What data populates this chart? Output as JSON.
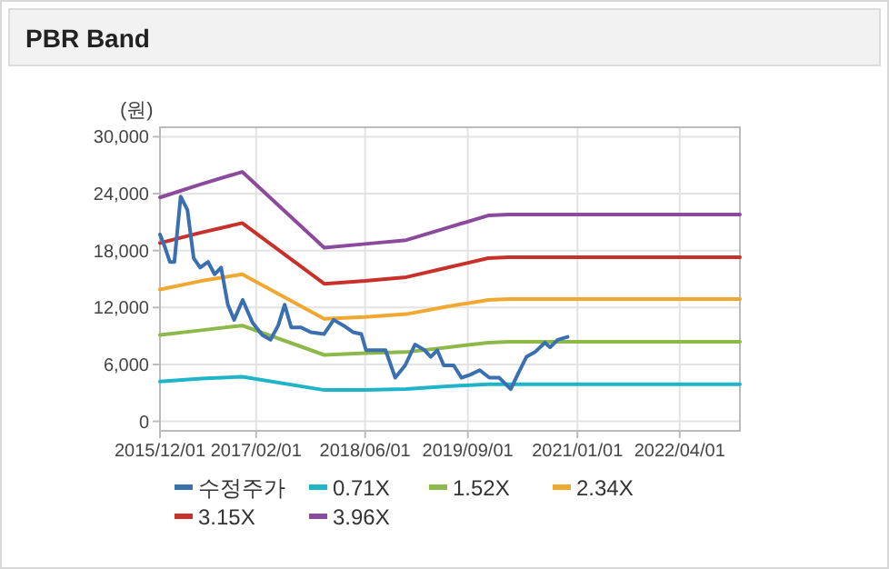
{
  "chart_data": {
    "type": "line",
    "title": "PBR Band",
    "ylabel": "(원)",
    "xlim": [
      "2015-12-01",
      "2022-12-25"
    ],
    "xticks": [
      {
        "value": "2015-12-01",
        "label": "2015/12/01"
      },
      {
        "value": "2017-02-01",
        "label": "2017/02/01"
      },
      {
        "value": "2018-06-01",
        "label": "2018/06/01"
      },
      {
        "value": "2019-09-01",
        "label": "2019/09/01"
      },
      {
        "value": "2021-01-01",
        "label": "2021/01/01"
      },
      {
        "value": "2022-04-01",
        "label": "2022/04/01"
      }
    ],
    "ylim": [
      -1000,
      31000
    ],
    "yticks": [
      0,
      {
        "value": 6000,
        "label": "6,000"
      },
      {
        "value": 12000,
        "label": "12,000"
      },
      {
        "value": 18000,
        "label": "18,000"
      },
      {
        "value": 24000,
        "label": "24,000"
      },
      {
        "value": 30000,
        "label": "30,000"
      }
    ],
    "grid": true,
    "legend": "bottom",
    "line_style": "solid",
    "marker": "none",
    "series": [
      {
        "name": "수정주가",
        "color": "#3a6fb0",
        "x": [
          "2015-12-01",
          "2015-12-21",
          "2016-01-14",
          "2016-02-03",
          "2016-03-02",
          "2016-04-01",
          "2016-04-29",
          "2016-05-28",
          "2016-07-02",
          "2016-07-31",
          "2016-08-29",
          "2016-09-28",
          "2016-10-26",
          "2016-12-03",
          "2017-01-16",
          "2017-02-28",
          "2017-04-06",
          "2017-05-10",
          "2017-06-08",
          "2017-07-07",
          "2017-08-20",
          "2017-10-02",
          "2017-11-30",
          "2018-01-12",
          "2018-02-25",
          "2018-04-08",
          "2018-05-15",
          "2018-06-05",
          "2018-08-31",
          "2018-10-13",
          "2018-11-26",
          "2019-01-09",
          "2019-02-21",
          "2019-03-20",
          "2019-04-18",
          "2019-05-17",
          "2019-06-30",
          "2019-08-04",
          "2019-09-11",
          "2019-10-24",
          "2019-12-06",
          "2020-01-19",
          "2020-03-10",
          "2020-04-15",
          "2020-05-19",
          "2020-06-26",
          "2020-08-09",
          "2020-09-01",
          "2020-10-05",
          "2020-11-18"
        ],
        "values": [
          19700,
          18500,
          16800,
          16800,
          23700,
          22300,
          17200,
          16200,
          16800,
          15500,
          16200,
          12300,
          10700,
          12800,
          10400,
          9100,
          8600,
          10100,
          12300,
          9900,
          9900,
          9400,
          9200,
          10700,
          10100,
          9400,
          9200,
          7500,
          7500,
          4600,
          5900,
          8100,
          7500,
          6800,
          7500,
          5900,
          5900,
          4600,
          4900,
          5400,
          4600,
          4600,
          3400,
          5200,
          6800,
          7300,
          8300,
          7800,
          8600,
          8900
        ]
      },
      {
        "name": "0.71X",
        "color": "#1fb5c8",
        "x": [
          "2015-12-01",
          "2016-06-01",
          "2016-12-01",
          "2017-12-01",
          "2018-06-01",
          "2018-12-01",
          "2019-06-01",
          "2019-12-01",
          "2020-03-01",
          "2022-12-25"
        ],
        "values": [
          4200,
          4500,
          4700,
          3300,
          3300,
          3400,
          3700,
          3900,
          3900,
          3900
        ]
      },
      {
        "name": "1.52X",
        "color": "#8db84a",
        "x": [
          "2015-12-01",
          "2016-06-01",
          "2016-12-01",
          "2017-12-01",
          "2018-06-01",
          "2018-12-01",
          "2019-06-01",
          "2019-12-01",
          "2020-03-01",
          "2022-12-25"
        ],
        "values": [
          9100,
          9600,
          10100,
          7000,
          7200,
          7300,
          7800,
          8300,
          8400,
          8400
        ]
      },
      {
        "name": "2.34X",
        "color": "#f0a830",
        "x": [
          "2015-12-01",
          "2016-06-01",
          "2016-12-01",
          "2017-12-01",
          "2018-06-01",
          "2018-12-01",
          "2019-06-01",
          "2019-12-01",
          "2020-03-01",
          "2022-12-25"
        ],
        "values": [
          13900,
          14800,
          15500,
          10800,
          11000,
          11300,
          12100,
          12800,
          12900,
          12900
        ]
      },
      {
        "name": "3.15X",
        "color": "#c8302a",
        "x": [
          "2015-12-01",
          "2016-06-01",
          "2016-12-01",
          "2017-12-01",
          "2018-06-01",
          "2018-12-01",
          "2019-06-01",
          "2019-12-01",
          "2020-03-01",
          "2022-12-25"
        ],
        "values": [
          18800,
          19900,
          20900,
          14500,
          14800,
          15200,
          16200,
          17200,
          17300,
          17300
        ]
      },
      {
        "name": "3.96X",
        "color": "#8b4a9c",
        "x": [
          "2015-12-01",
          "2016-06-01",
          "2016-12-01",
          "2017-12-01",
          "2018-06-01",
          "2018-12-01",
          "2019-06-01",
          "2019-12-01",
          "2020-03-01",
          "2022-12-25"
        ],
        "values": [
          23600,
          25000,
          26300,
          18300,
          18700,
          19100,
          20400,
          21700,
          21800,
          21800
        ]
      }
    ]
  }
}
